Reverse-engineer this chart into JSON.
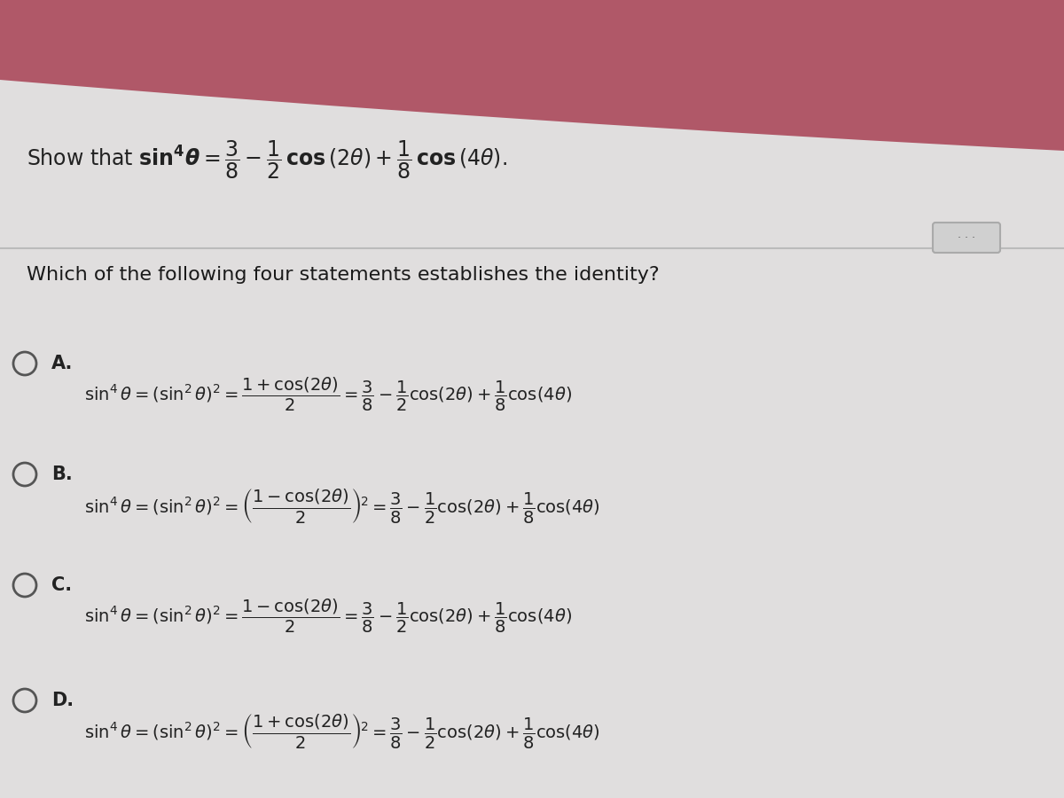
{
  "bg_color_main": "#e0dede",
  "bg_color_content": "#e8e6e6",
  "text_color": "#333333",
  "separator_color": "#bbbbbb",
  "question": "Which of the following four statements establishes the identity?",
  "option_labels": [
    "A",
    "B",
    "C",
    "D"
  ],
  "title_prefix": "Show that ",
  "dot_btn_color": "#cccccc",
  "dot_btn_border": "#aaaaaa"
}
